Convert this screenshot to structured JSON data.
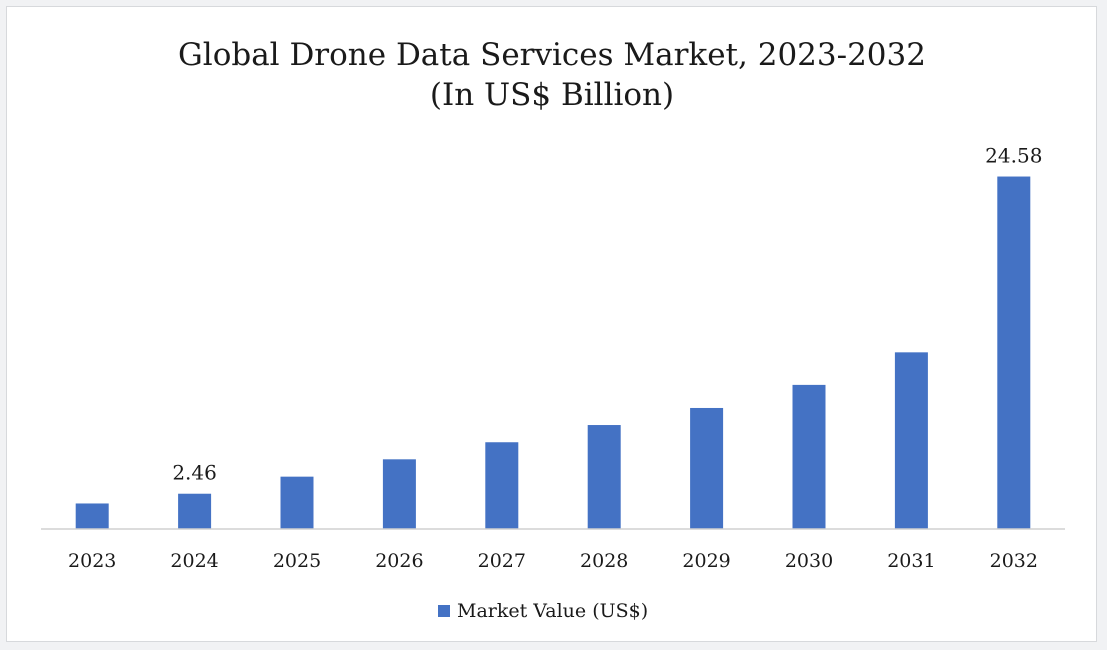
{
  "chart_data": {
    "type": "bar",
    "title": "Global Drone Data Services Market, 2023-2032",
    "subtitle": "(In US$ Billion)",
    "categories": [
      "2023",
      "2024",
      "2025",
      "2026",
      "2027",
      "2028",
      "2029",
      "2030",
      "2031",
      "2032"
    ],
    "series": [
      {
        "name": "Market Value (US$)",
        "color": "#4472c4",
        "values": [
          1.78,
          2.46,
          3.65,
          4.86,
          6.05,
          7.25,
          8.44,
          10.05,
          12.32,
          24.58
        ]
      }
    ],
    "data_labels": [
      {
        "category": "2024",
        "text": "2.46"
      },
      {
        "category": "2032",
        "text": "24.58"
      }
    ],
    "ylim": [
      0,
      26.5
    ],
    "grid": false,
    "legend": "bottom"
  }
}
